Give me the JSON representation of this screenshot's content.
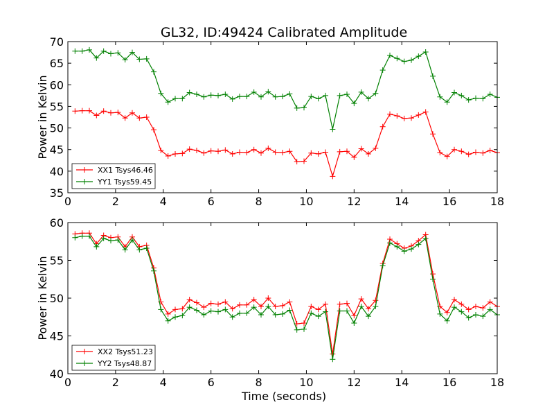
{
  "chart_data": [
    {
      "type": "line",
      "title": "GL32, ID:49424 Calibrated Amplitude",
      "xlabel": "",
      "ylabel": "Power in Kelvin",
      "xlim": [
        0,
        18
      ],
      "ylim": [
        35,
        70
      ],
      "xticks": [
        "0",
        "2",
        "4",
        "6",
        "8",
        "10",
        "12",
        "14",
        "16",
        "18"
      ],
      "yticks": [
        "35",
        "40",
        "45",
        "50",
        "55",
        "60",
        "65",
        "70"
      ],
      "legend_position": "lower-left",
      "grid": false,
      "x": [
        0.3,
        0.6,
        0.9,
        1.2,
        1.5,
        1.8,
        2.1,
        2.4,
        2.7,
        3.0,
        3.3,
        3.6,
        3.9,
        4.2,
        4.5,
        4.8,
        5.1,
        5.4,
        5.7,
        6.0,
        6.3,
        6.6,
        6.9,
        7.2,
        7.5,
        7.8,
        8.1,
        8.4,
        8.7,
        9.0,
        9.3,
        9.6,
        9.9,
        10.2,
        10.5,
        10.8,
        11.1,
        11.4,
        11.7,
        12.0,
        12.3,
        12.6,
        12.9,
        13.2,
        13.5,
        13.8,
        14.1,
        14.4,
        14.7,
        15.0,
        15.3,
        15.6,
        15.9,
        16.2,
        16.5,
        16.8,
        17.1,
        17.4,
        17.7,
        18.0
      ],
      "series": [
        {
          "name": "XX1 Tsys46.46",
          "color": "#ff0000",
          "values": [
            53.9,
            54.0,
            54.0,
            52.9,
            53.9,
            53.5,
            53.6,
            52.3,
            53.5,
            52.3,
            52.5,
            49.6,
            44.8,
            43.5,
            44.0,
            44.1,
            45.1,
            44.8,
            44.2,
            44.7,
            44.6,
            44.9,
            44.0,
            44.4,
            44.3,
            45.0,
            44.2,
            45.3,
            44.4,
            44.3,
            44.6,
            42.2,
            42.3,
            44.2,
            44.0,
            44.4,
            38.8,
            44.5,
            44.6,
            43.2,
            45.2,
            44.0,
            45.3,
            50.3,
            53.2,
            52.8,
            52.2,
            52.3,
            53.0,
            53.7,
            48.6,
            44.3,
            43.4,
            45.0,
            44.6,
            43.9,
            44.4,
            44.2,
            44.8,
            44.3
          ]
        },
        {
          "name": "YY1 Tsys59.45",
          "color": "#008000",
          "values": [
            67.8,
            67.8,
            68.1,
            66.2,
            67.8,
            67.2,
            67.4,
            65.8,
            67.5,
            65.9,
            66.0,
            63.0,
            58.0,
            56.0,
            56.8,
            56.8,
            58.2,
            57.8,
            57.2,
            57.6,
            57.5,
            57.8,
            56.7,
            57.3,
            57.3,
            58.3,
            57.2,
            58.4,
            57.2,
            57.3,
            57.9,
            54.6,
            54.7,
            57.3,
            56.8,
            57.5,
            49.7,
            57.5,
            57.8,
            55.7,
            58.3,
            56.8,
            58.0,
            63.4,
            66.8,
            66.1,
            65.4,
            65.7,
            66.6,
            67.6,
            62.0,
            57.2,
            56.0,
            58.2,
            57.5,
            56.5,
            56.9,
            56.8,
            57.8,
            57.1
          ]
        }
      ]
    },
    {
      "type": "line",
      "title": "",
      "xlabel": "Time (seconds)",
      "ylabel": "Power in Kelvin",
      "xlim": [
        0,
        18
      ],
      "ylim": [
        40,
        60
      ],
      "xticks": [
        "0",
        "2",
        "4",
        "6",
        "8",
        "10",
        "12",
        "14",
        "16",
        "18"
      ],
      "yticks": [
        "40",
        "45",
        "50",
        "55",
        "60"
      ],
      "legend_position": "lower-left",
      "grid": false,
      "x": [
        0.3,
        0.6,
        0.9,
        1.2,
        1.5,
        1.8,
        2.1,
        2.4,
        2.7,
        3.0,
        3.3,
        3.6,
        3.9,
        4.2,
        4.5,
        4.8,
        5.1,
        5.4,
        5.7,
        6.0,
        6.3,
        6.6,
        6.9,
        7.2,
        7.5,
        7.8,
        8.1,
        8.4,
        8.7,
        9.0,
        9.3,
        9.6,
        9.9,
        10.2,
        10.5,
        10.8,
        11.1,
        11.4,
        11.7,
        12.0,
        12.3,
        12.6,
        12.9,
        13.2,
        13.5,
        13.8,
        14.1,
        14.4,
        14.7,
        15.0,
        15.3,
        15.6,
        15.9,
        16.2,
        16.5,
        16.8,
        17.1,
        17.4,
        17.7,
        18.0
      ],
      "series": [
        {
          "name": "XX2 Tsys51.23",
          "color": "#ff0000",
          "values": [
            58.5,
            58.6,
            58.6,
            57.2,
            58.3,
            58.0,
            58.1,
            56.8,
            58.1,
            56.8,
            57.0,
            54.0,
            49.5,
            47.9,
            48.5,
            48.6,
            49.8,
            49.4,
            48.8,
            49.3,
            49.2,
            49.5,
            48.6,
            49.1,
            49.1,
            49.8,
            48.9,
            50.0,
            48.9,
            49.0,
            49.5,
            46.6,
            46.7,
            48.9,
            48.5,
            49.2,
            42.6,
            49.2,
            49.3,
            47.7,
            49.9,
            48.6,
            49.7,
            54.6,
            57.8,
            57.2,
            56.6,
            56.9,
            57.6,
            58.4,
            53.2,
            48.9,
            48.1,
            49.8,
            49.2,
            48.5,
            48.9,
            48.7,
            49.5,
            48.9
          ]
        },
        {
          "name": "YY2 Tsys48.87",
          "color": "#008000",
          "values": [
            58.0,
            58.2,
            58.2,
            56.8,
            57.9,
            57.6,
            57.7,
            56.4,
            57.7,
            56.4,
            56.6,
            53.6,
            48.5,
            47.0,
            47.5,
            47.7,
            48.8,
            48.4,
            47.8,
            48.3,
            48.2,
            48.5,
            47.5,
            48.0,
            48.0,
            48.8,
            47.8,
            48.9,
            47.8,
            47.9,
            48.4,
            45.8,
            45.9,
            48.0,
            47.6,
            48.2,
            41.9,
            48.3,
            48.3,
            46.7,
            48.9,
            47.6,
            48.9,
            54.3,
            57.3,
            56.8,
            56.2,
            56.5,
            57.1,
            57.9,
            52.5,
            47.9,
            47.0,
            48.8,
            48.2,
            47.4,
            47.8,
            47.6,
            48.5,
            47.8
          ]
        }
      ]
    }
  ]
}
